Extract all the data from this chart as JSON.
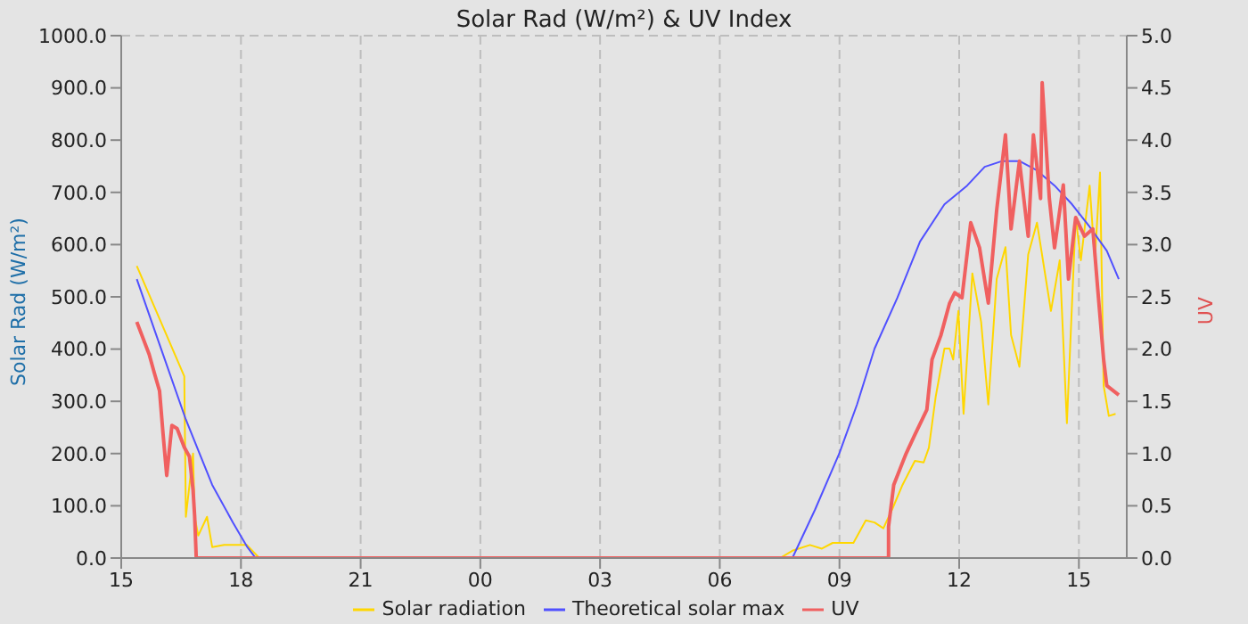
{
  "chart_data": {
    "type": "line",
    "title": "Solar Rad (W/m²) &  UV Index",
    "ylabel": "Solar Rad (W/m²)",
    "y2label": "UV",
    "xlim": [
      15,
      40.2
    ],
    "xticks": [
      {
        "value": 15,
        "label": "15"
      },
      {
        "value": 18,
        "label": "18"
      },
      {
        "value": 21,
        "label": "21"
      },
      {
        "value": 24,
        "label": "00"
      },
      {
        "value": 27,
        "label": "03"
      },
      {
        "value": 30,
        "label": "06"
      },
      {
        "value": 33,
        "label": "09"
      },
      {
        "value": 36,
        "label": "12"
      },
      {
        "value": 39,
        "label": "15"
      }
    ],
    "ylim": [
      0,
      1000
    ],
    "yticks": [
      {
        "value": 0,
        "label": "0.0"
      },
      {
        "value": 100,
        "label": "100.0"
      },
      {
        "value": 200,
        "label": "200.0"
      },
      {
        "value": 300,
        "label": "300.0"
      },
      {
        "value": 400,
        "label": "400.0"
      },
      {
        "value": 500,
        "label": "500.0"
      },
      {
        "value": 600,
        "label": "600.0"
      },
      {
        "value": 700,
        "label": "700.0"
      },
      {
        "value": 800,
        "label": "800.0"
      },
      {
        "value": 900,
        "label": "900.0"
      },
      {
        "value": 1000,
        "label": "1000.0"
      }
    ],
    "y2lim": [
      0,
      5
    ],
    "y2ticks": [
      {
        "value": 0,
        "label": "0.0"
      },
      {
        "value": 0.5,
        "label": "0.5"
      },
      {
        "value": 1,
        "label": "1.0"
      },
      {
        "value": 1.5,
        "label": "1.5"
      },
      {
        "value": 2,
        "label": "2.0"
      },
      {
        "value": 2.5,
        "label": "2.5"
      },
      {
        "value": 3,
        "label": "3.0"
      },
      {
        "value": 3.5,
        "label": "3.5"
      },
      {
        "value": 4,
        "label": "4.0"
      },
      {
        "value": 4.5,
        "label": "4.5"
      },
      {
        "value": 5,
        "label": "5.0"
      }
    ],
    "grid": true,
    "line_style": "solid",
    "marker": "none",
    "legend": "bottom",
    "series": [
      {
        "name": "Solar radiation",
        "color": "#ffd700",
        "x": [
          15.39,
          16.58,
          16.62,
          16.8,
          16.84,
          16.93,
          17.15,
          17.28,
          17.58,
          18.15,
          18.46,
          31.51,
          31.82,
          32.26,
          32.56,
          32.83,
          33.35,
          33.66,
          33.88,
          34.1,
          34.32,
          34.58,
          34.89,
          35.11,
          35.24,
          35.41,
          35.63,
          35.76,
          35.85,
          35.98,
          36.11,
          36.33,
          36.55,
          36.73,
          36.94,
          37.16,
          37.3,
          37.51,
          37.73,
          37.95,
          38.3,
          38.52,
          38.7,
          38.92,
          39.05,
          39.27,
          39.4,
          39.53,
          39.62,
          39.75,
          39.92
        ],
        "values": [
          559,
          348,
          79,
          200,
          79,
          43,
          79,
          21,
          25,
          25,
          0,
          0,
          14,
          25,
          18,
          29,
          29,
          72,
          68,
          57,
          93,
          140,
          186,
          183,
          211,
          308,
          401,
          401,
          380,
          473,
          276,
          545,
          452,
          294,
          534,
          595,
          427,
          366,
          581,
          642,
          473,
          570,
          258,
          652,
          570,
          713,
          570,
          738,
          330,
          272,
          276
        ]
      },
      {
        "name": "Theoretical solar max",
        "color": "#5050ff",
        "x": [
          15.39,
          15.96,
          16.62,
          17.28,
          17.8,
          18.15,
          18.37,
          31.82,
          32.39,
          33.0,
          33.44,
          33.88,
          34.45,
          35.02,
          35.63,
          36.2,
          36.64,
          37.08,
          37.51,
          37.95,
          38.39,
          38.83,
          39.27,
          39.7,
          40.0
        ],
        "values": [
          534,
          409,
          265,
          140,
          68,
          22,
          0,
          0,
          93,
          201,
          294,
          401,
          498,
          606,
          677,
          713,
          749,
          760,
          760,
          742,
          713,
          677,
          634,
          588,
          534
        ]
      },
      {
        "name": "UV",
        "color": "#f06060",
        "axis": "y2",
        "x": [
          15.39,
          15.7,
          15.83,
          15.96,
          16.05,
          16.14,
          16.27,
          16.4,
          16.58,
          16.71,
          16.8,
          16.84,
          16.88,
          34.23,
          34.23,
          34.36,
          34.67,
          34.89,
          35.19,
          35.32,
          35.54,
          35.76,
          35.89,
          36.07,
          36.29,
          36.51,
          36.73,
          36.94,
          37.16,
          37.3,
          37.51,
          37.73,
          37.86,
          38.04,
          38.08,
          38.26,
          38.39,
          38.61,
          38.74,
          38.92,
          39.14,
          39.35,
          39.48,
          39.62,
          39.7,
          40.0
        ],
        "values": [
          2.26,
          1.95,
          1.77,
          1.6,
          1.18,
          0.79,
          1.27,
          1.24,
          1.06,
          0.97,
          0.65,
          0.4,
          0,
          0,
          0.3,
          0.7,
          1.0,
          1.18,
          1.42,
          1.9,
          2.13,
          2.44,
          2.54,
          2.49,
          3.21,
          2.97,
          2.44,
          3.33,
          4.05,
          3.15,
          3.8,
          3.08,
          4.05,
          3.44,
          4.55,
          3.44,
          2.97,
          3.57,
          2.67,
          3.26,
          3.08,
          3.15,
          2.54,
          1.9,
          1.65,
          1.56
        ]
      }
    ]
  }
}
